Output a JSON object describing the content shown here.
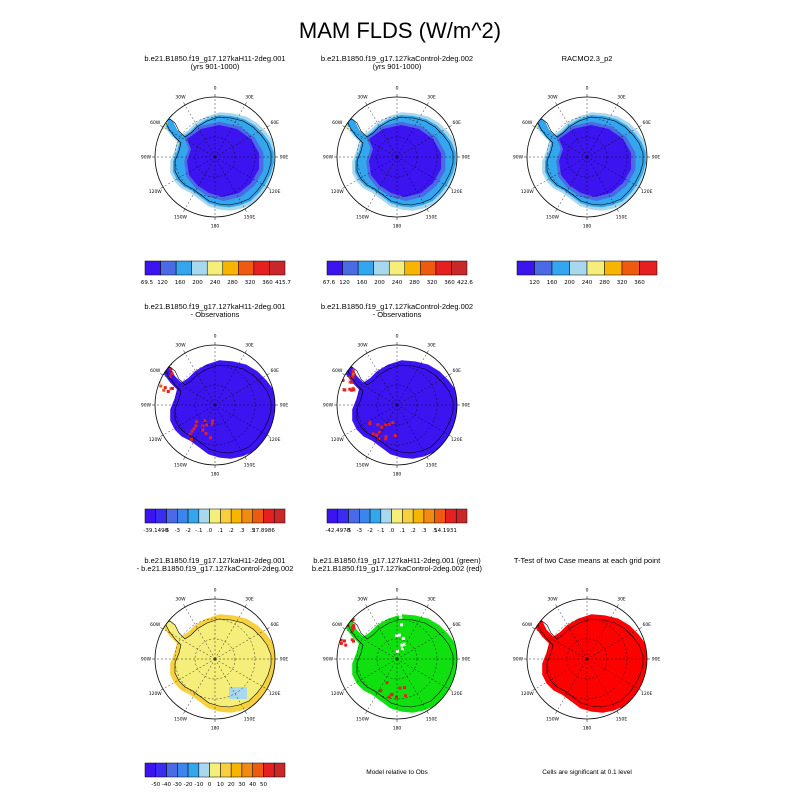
{
  "page": {
    "title": "MAM FLDS (W/m^2)"
  },
  "panels": [
    {
      "id": "p1",
      "row": 0,
      "col": 0,
      "title_lines": [
        "b.e21.B1850.f19_g17.127kaH11-2deg.001",
        "(yrs 901-1000)"
      ],
      "scheme": "abs"
    },
    {
      "id": "p2",
      "row": 0,
      "col": 1,
      "title_lines": [
        "b.e21.B1850.f19_g17.127kaControl-2deg.002",
        "(yrs 901-1000)"
      ],
      "scheme": "abs"
    },
    {
      "id": "p3",
      "row": 0,
      "col": 2,
      "title_lines": [
        "RACMO2.3_p2"
      ],
      "scheme": "abs"
    },
    {
      "id": "p4",
      "row": 1,
      "col": 0,
      "title_lines": [
        "b.e21.B1850.f19_g17.127kaH11-2deg.001",
        "- Observations"
      ],
      "scheme": "bias"
    },
    {
      "id": "p5",
      "row": 1,
      "col": 1,
      "title_lines": [
        "b.e21.B1850.f19_g17.127kaControl-2deg.002",
        "- Observations"
      ],
      "scheme": "bias"
    },
    {
      "id": "p6",
      "row": 2,
      "col": 0,
      "title_lines": [
        "b.e21.B1850.f19_g17.127kaH11-2deg.001",
        "- b.e21.B1850.f19_g17.127kaControl-2deg.002"
      ],
      "scheme": "diff"
    },
    {
      "id": "p7",
      "row": 2,
      "col": 1,
      "title_lines": [
        "b.e21.B1850.f19_g17.127kaH11-2deg.001 (green)",
        "b.e21.B1850.f19_g17.127kaControl-2deg.002 (red)"
      ],
      "scheme": "compare"
    },
    {
      "id": "p8",
      "row": 2,
      "col": 2,
      "title_lines": [
        "T-Test of two Case means at each grid point"
      ],
      "scheme": "ttest"
    }
  ],
  "lon_labels": [
    "0",
    "30E",
    "60E",
    "90E",
    "120E",
    "150E",
    "180",
    "150W",
    "120W",
    "90W",
    "60W",
    "30W"
  ],
  "colorbars": [
    {
      "id": "cb1",
      "under": "p1",
      "colors": [
        "#3c14f0",
        "#4a6ae6",
        "#34a6ee",
        "#a8d8ee",
        "#f5ee7a",
        "#f7b400",
        "#ee5a10",
        "#e42020",
        "#c8282a"
      ],
      "labels": [
        "69.5",
        "120",
        "160",
        "200",
        "240",
        "280",
        "320",
        "360",
        "415.7"
      ]
    },
    {
      "id": "cb2",
      "under": "p2",
      "colors": [
        "#3c14f0",
        "#4a6ae6",
        "#34a6ee",
        "#a8d8ee",
        "#f5ee7a",
        "#f7b400",
        "#ee5a10",
        "#e42020",
        "#c8282a"
      ],
      "labels": [
        "67.6",
        "120",
        "160",
        "200",
        "240",
        "280",
        "320",
        "360",
        "422.6"
      ]
    },
    {
      "id": "cb3",
      "under": "p3",
      "colors": [
        "#3c14f0",
        "#4a6ae6",
        "#34a6ee",
        "#a8d8ee",
        "#f5ee7a",
        "#f7b400",
        "#ee5a10",
        "#e42020"
      ],
      "labels": [
        "120",
        "160",
        "200",
        "240",
        "280",
        "320",
        "360"
      ]
    },
    {
      "id": "cb4",
      "under": "p4",
      "colors": [
        "#3c14f0",
        "#3a2cf0",
        "#4a6ae6",
        "#3a86ec",
        "#34a6ee",
        "#a8d8ee",
        "#f5ee7a",
        "#f7d040",
        "#f7b400",
        "#f08a10",
        "#ee5a10",
        "#e42020",
        "#c8282a"
      ],
      "labels": [
        "-39.1499",
        "-5",
        "-3",
        "-2",
        "-.1",
        ".0",
        ".1",
        ".2",
        ".3",
        ".5",
        "27.8986"
      ]
    },
    {
      "id": "cb5",
      "under": "p5",
      "colors": [
        "#3c14f0",
        "#3a2cf0",
        "#4a6ae6",
        "#3a86ec",
        "#34a6ee",
        "#a8d8ee",
        "#f5ee7a",
        "#f7d040",
        "#f7b400",
        "#f08a10",
        "#ee5a10",
        "#e42020",
        "#c8282a"
      ],
      "labels": [
        "-42.4978",
        "-5",
        "-3",
        "-2",
        "-.1",
        ".0",
        ".1",
        ".2",
        ".3",
        ".5",
        "14.1931"
      ]
    },
    {
      "id": "cb6",
      "under": "p6",
      "colors": [
        "#3c14f0",
        "#3a2cf0",
        "#4a6ae6",
        "#3a86ec",
        "#34a6ee",
        "#a8d8ee",
        "#f5ee7a",
        "#f7d040",
        "#f7b400",
        "#f08a10",
        "#ee5a10",
        "#e42020",
        "#c8282a"
      ],
      "labels": [
        "-50",
        "-40",
        "-30",
        "-20",
        "-10",
        "0",
        "10",
        "20",
        "30",
        "40",
        "50"
      ]
    }
  ],
  "notes": {
    "p7": "Model relative to Obs",
    "p8": "Cells are significant at 0.1 level"
  },
  "chart_data": {
    "type": "heatmap",
    "title": "MAM FLDS (W/m^2)",
    "projection": "south-polar-stereographic",
    "panel_count": 8,
    "grid": true,
    "legend_placement": "bottom"
  }
}
